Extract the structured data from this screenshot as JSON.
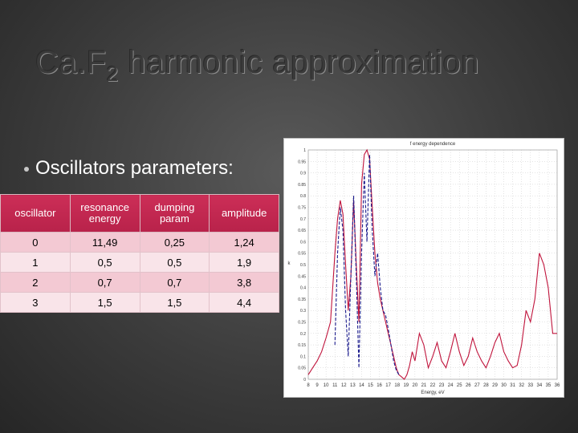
{
  "slide": {
    "title_main": "Ca.F",
    "title_sub": "2",
    "title_rest": " harmonic approximation",
    "bullet_text": "Oscillators parameters:"
  },
  "table": {
    "headers": [
      "oscillator",
      "resonance energy",
      "dumping param",
      "amplitude"
    ],
    "rows": [
      [
        "0",
        "11,49",
        "0,25",
        "1,24"
      ],
      [
        "1",
        "0,5",
        "0,5",
        "1,9"
      ],
      [
        "2",
        "0,7",
        "0,7",
        "3,8"
      ],
      [
        "3",
        "1,5",
        "1,5",
        "4,4"
      ]
    ]
  },
  "colors": {
    "header_bg": "#c02650",
    "row_odd": "#f3c9d3",
    "row_even": "#f9e4e9",
    "series_red": "#c0143c",
    "series_blue": "#1c1c8c"
  },
  "chart_data": {
    "type": "line",
    "title": "f energy dependence",
    "xlabel": "Energy, eV",
    "ylabel": "k",
    "xlim": [
      8,
      36
    ],
    "ylim": [
      0.0,
      1.0
    ],
    "x_ticks": [
      "8",
      "9",
      "10",
      "11",
      "12",
      "13",
      "14",
      "15",
      "16",
      "17",
      "18",
      "19",
      "20",
      "21",
      "22",
      "23",
      "24",
      "25",
      "26",
      "27",
      "28",
      "29",
      "30",
      "31",
      "32",
      "33",
      "34",
      "35",
      "36"
    ],
    "y_ticks": [
      "0",
      "0.05",
      "0.1",
      "0.15",
      "0.2",
      "0.25",
      "0.3",
      "0.35",
      "0.4",
      "0.45",
      "0.5",
      "0.55",
      "0.6",
      "0.65",
      "0.7",
      "0.75",
      "0.8",
      "0.85",
      "0.9",
      "0.95",
      "1"
    ],
    "grid": true,
    "series": [
      {
        "style": "solid",
        "color": "#c0143c",
        "x": [
          8.0,
          8.5,
          9.0,
          9.5,
          10.0,
          10.5,
          11.0,
          11.3,
          11.6,
          11.9,
          12.2,
          12.5,
          12.8,
          13.1,
          13.4,
          13.7,
          14.0,
          14.3,
          14.6,
          14.9,
          15.2,
          15.5,
          15.8,
          16.1,
          16.4,
          16.7,
          17.0,
          17.3,
          17.6,
          17.9,
          18.2,
          18.5,
          18.8,
          19.1,
          19.4,
          19.7,
          20.0,
          20.5,
          21.0,
          21.5,
          22.0,
          22.5,
          23.0,
          23.5,
          24.0,
          24.5,
          25.0,
          25.5,
          26.0,
          26.5,
          27.0,
          27.5,
          28.0,
          28.5,
          29.0,
          29.5,
          30.0,
          30.5,
          31.0,
          31.5,
          32.0,
          32.5,
          33.0,
          33.5,
          34.0,
          34.5,
          35.0,
          35.5,
          36.0
        ],
        "y": [
          0.02,
          0.05,
          0.08,
          0.12,
          0.18,
          0.25,
          0.55,
          0.7,
          0.78,
          0.72,
          0.5,
          0.3,
          0.45,
          0.78,
          0.5,
          0.25,
          0.85,
          0.98,
          1.0,
          0.96,
          0.75,
          0.55,
          0.42,
          0.35,
          0.3,
          0.25,
          0.2,
          0.15,
          0.1,
          0.05,
          0.02,
          0.01,
          0.0,
          0.02,
          0.06,
          0.12,
          0.08,
          0.2,
          0.15,
          0.05,
          0.1,
          0.16,
          0.08,
          0.05,
          0.12,
          0.2,
          0.12,
          0.06,
          0.1,
          0.18,
          0.12,
          0.08,
          0.05,
          0.1,
          0.16,
          0.2,
          0.12,
          0.08,
          0.05,
          0.06,
          0.15,
          0.3,
          0.25,
          0.35,
          0.55,
          0.5,
          0.4,
          0.2,
          0.2
        ]
      },
      {
        "style": "dashed",
        "color": "#1c1c8c",
        "x": [
          11.0,
          11.3,
          11.6,
          11.9,
          12.2,
          12.5,
          12.8,
          13.1,
          13.4,
          13.7,
          14.0,
          14.3,
          14.6,
          14.9,
          15.2,
          15.5,
          15.8,
          16.1,
          16.4,
          16.7,
          17.0,
          17.3,
          17.6,
          17.9,
          18.2
        ],
        "y": [
          0.15,
          0.55,
          0.75,
          0.65,
          0.3,
          0.1,
          0.45,
          0.8,
          0.45,
          0.05,
          0.55,
          0.9,
          0.6,
          0.98,
          0.65,
          0.45,
          0.55,
          0.4,
          0.3,
          0.28,
          0.22,
          0.15,
          0.08,
          0.04,
          0.02
        ]
      }
    ]
  }
}
